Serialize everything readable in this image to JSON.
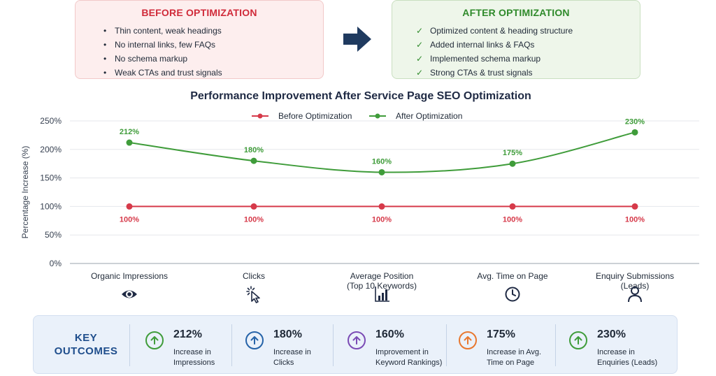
{
  "before": {
    "title": "BEFORE OPTIMIZATION",
    "items": [
      "Thin content, weak headings",
      "No internal links, few FAQs",
      "No schema markup",
      "Weak CTAs and trust signals"
    ],
    "color": "#d02b3a"
  },
  "after": {
    "title": "AFTER OPTIMIZATION",
    "items": [
      "Optimized content & heading structure",
      "Added internal links & FAQs",
      "Implemented schema markup",
      "Strong CTAs & trust signals"
    ],
    "color": "#2f8a2b"
  },
  "chart_data": {
    "type": "line",
    "title": "Performance Improvement After Service Page SEO Optimization",
    "ylabel": "Percentage Increase (%)",
    "xlabel": "",
    "ylim": [
      0,
      250
    ],
    "yticks": [
      "0%",
      "50%",
      "100%",
      "150%",
      "200%",
      "250%"
    ],
    "ytick_values": [
      0,
      50,
      100,
      150,
      200,
      250
    ],
    "grid": true,
    "legend_position": "top-center",
    "categories": [
      {
        "lines": [
          "Organic Impressions"
        ],
        "icon": "eye-icon"
      },
      {
        "lines": [
          "Clicks"
        ],
        "icon": "cursor-click-icon"
      },
      {
        "lines": [
          "Average Position",
          "(Top 10 Keywords)"
        ],
        "icon": "bar-chart-icon"
      },
      {
        "lines": [
          "Avg. Time on Page"
        ],
        "icon": "clock-icon"
      },
      {
        "lines": [
          "Enquiry Submissions",
          "(Leads)"
        ],
        "icon": "user-icon"
      }
    ],
    "series": [
      {
        "name": "Before Optimization",
        "values": [
          100,
          100,
          100,
          100,
          100
        ],
        "labels": [
          "100%",
          "100%",
          "100%",
          "100%",
          "100%"
        ],
        "color": "#d63a4a"
      },
      {
        "name": "After Optimization",
        "values": [
          212,
          180,
          160,
          175,
          230
        ],
        "labels": [
          "212%",
          "180%",
          "160%",
          "175%",
          "230%"
        ],
        "color": "#3f9c3a"
      }
    ]
  },
  "outcomes": {
    "title_lines": [
      "KEY",
      "OUTCOMES"
    ],
    "items": [
      {
        "value": "212%",
        "desc": [
          "Increase in",
          "Impressions"
        ],
        "color": "#3f9c3a"
      },
      {
        "value": "180%",
        "desc": [
          "Increase in",
          "Clicks"
        ],
        "color": "#2563a8"
      },
      {
        "value": "160%",
        "desc": [
          "Improvement in",
          "Keyword Rankings)"
        ],
        "color": "#7b4bb5"
      },
      {
        "value": "175%",
        "desc": [
          "Increase in Avg.",
          "Time on Page"
        ],
        "color": "#e8772e"
      },
      {
        "value": "230%",
        "desc": [
          "Increase in",
          "Enquiries (Leads)"
        ],
        "color": "#3f9c3a"
      }
    ]
  }
}
